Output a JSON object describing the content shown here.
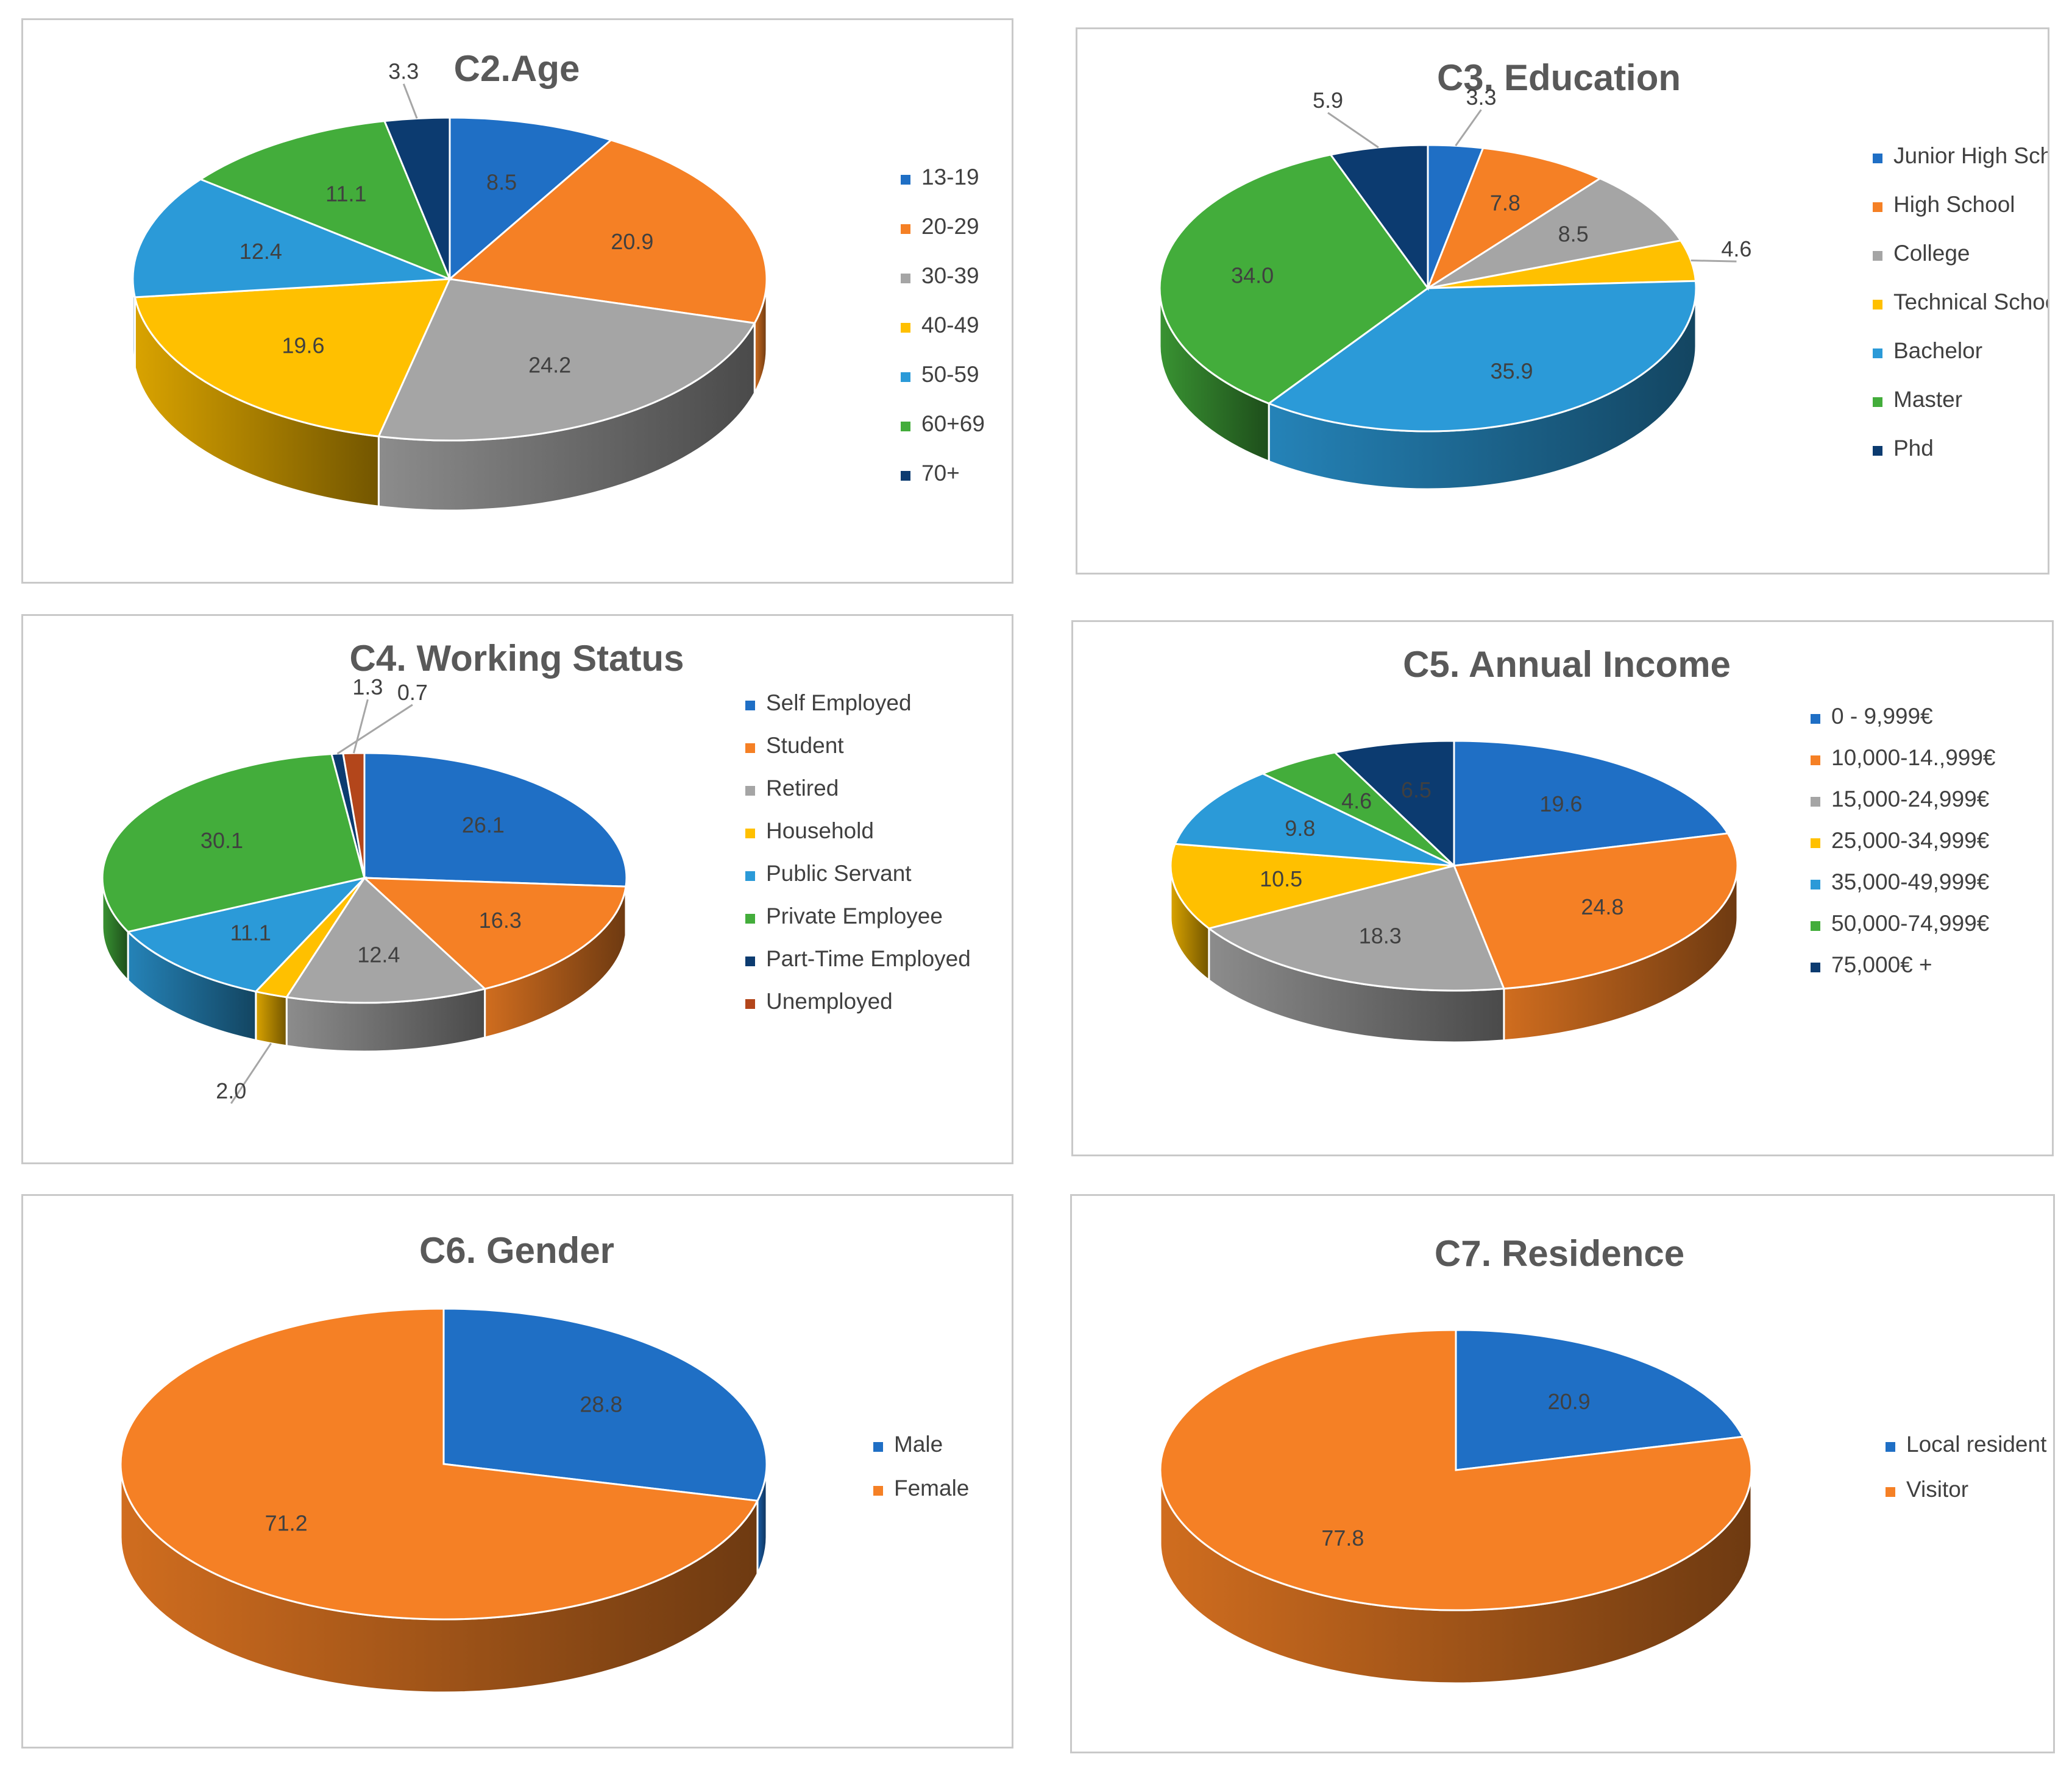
{
  "colors": {
    "blue": "#1f6fc5",
    "orange": "#f58025",
    "gray": "#a5a5a5",
    "yellow": "#ffc000",
    "lightblue": "#2b9ad8",
    "green": "#43ad3b",
    "navy": "#0c3b70",
    "rust": "#b3461b"
  },
  "chart_data": [
    {
      "id": "c2",
      "type": "pie",
      "title": "C2.Age",
      "categories": [
        "13-19",
        "20-29",
        "30-39",
        "40-49",
        "50-59",
        "60+69",
        "70+"
      ],
      "values": [
        8.5,
        20.9,
        24.2,
        19.6,
        12.4,
        11.1,
        3.3
      ],
      "labels": [
        "8.5",
        "20.9",
        "24.2",
        "19.6",
        "12.4",
        "11.1",
        "3.3"
      ],
      "colors": [
        "blue",
        "orange",
        "gray",
        "yellow",
        "lightblue",
        "green",
        "navy"
      ],
      "legend": "right"
    },
    {
      "id": "c3",
      "type": "pie",
      "title": "C3. Education",
      "categories": [
        "Junior High School",
        "High School",
        "College",
        "Technical School",
        "Bachelor",
        "Master",
        "Phd"
      ],
      "values": [
        3.3,
        7.8,
        8.5,
        4.6,
        35.9,
        34.0,
        5.9
      ],
      "labels": [
        "3.3",
        "7.8",
        "8.5",
        "4.6",
        "35.9",
        "34.0",
        "5.9"
      ],
      "colors": [
        "blue",
        "orange",
        "gray",
        "yellow",
        "lightblue",
        "green",
        "navy"
      ],
      "legend": "right"
    },
    {
      "id": "c4",
      "type": "pie",
      "title": "C4. Working Status",
      "categories": [
        "Self Employed",
        "Student",
        "Retired",
        "Household",
        "Public Servant",
        "Private Employee",
        "Part-Time Employed",
        "Unemployed"
      ],
      "values": [
        26.1,
        16.3,
        12.4,
        2.0,
        11.1,
        30.1,
        0.7,
        1.3
      ],
      "labels": [
        "26.1",
        "16.3",
        "12.4",
        "2.0",
        "11.1",
        "30.1",
        "0.7",
        "1.3"
      ],
      "colors": [
        "blue",
        "orange",
        "gray",
        "yellow",
        "lightblue",
        "green",
        "navy",
        "rust"
      ],
      "legend": "right"
    },
    {
      "id": "c5",
      "type": "pie",
      "title": "C5. Annual Income",
      "categories": [
        "0 - 9,999€",
        "10,000-14.,999€",
        "15,000-24,999€",
        "25,000-34,999€",
        "35,000-49,999€",
        "50,000-74,999€",
        "75,000€ +"
      ],
      "values": [
        19.6,
        24.8,
        18.3,
        10.5,
        9.8,
        4.6,
        6.5
      ],
      "labels": [
        "19.6",
        "24.8",
        "18.3",
        "10.5",
        "9.8",
        "4.6",
        "6.5"
      ],
      "colors": [
        "blue",
        "orange",
        "gray",
        "yellow",
        "lightblue",
        "green",
        "navy"
      ],
      "legend": "right"
    },
    {
      "id": "c6",
      "type": "pie",
      "title": "C6. Gender",
      "categories": [
        "Male",
        "Female"
      ],
      "values": [
        28.8,
        71.2
      ],
      "labels": [
        "28.8",
        "71.2"
      ],
      "colors": [
        "blue",
        "orange"
      ],
      "legend": "right"
    },
    {
      "id": "c7",
      "type": "pie",
      "title": "C7. Residence",
      "categories": [
        "Local resident",
        "Visitor"
      ],
      "values": [
        20.9,
        77.8
      ],
      "labels": [
        "20.9",
        "77.8"
      ],
      "colors": [
        "blue",
        "orange"
      ],
      "legend": "right"
    }
  ]
}
